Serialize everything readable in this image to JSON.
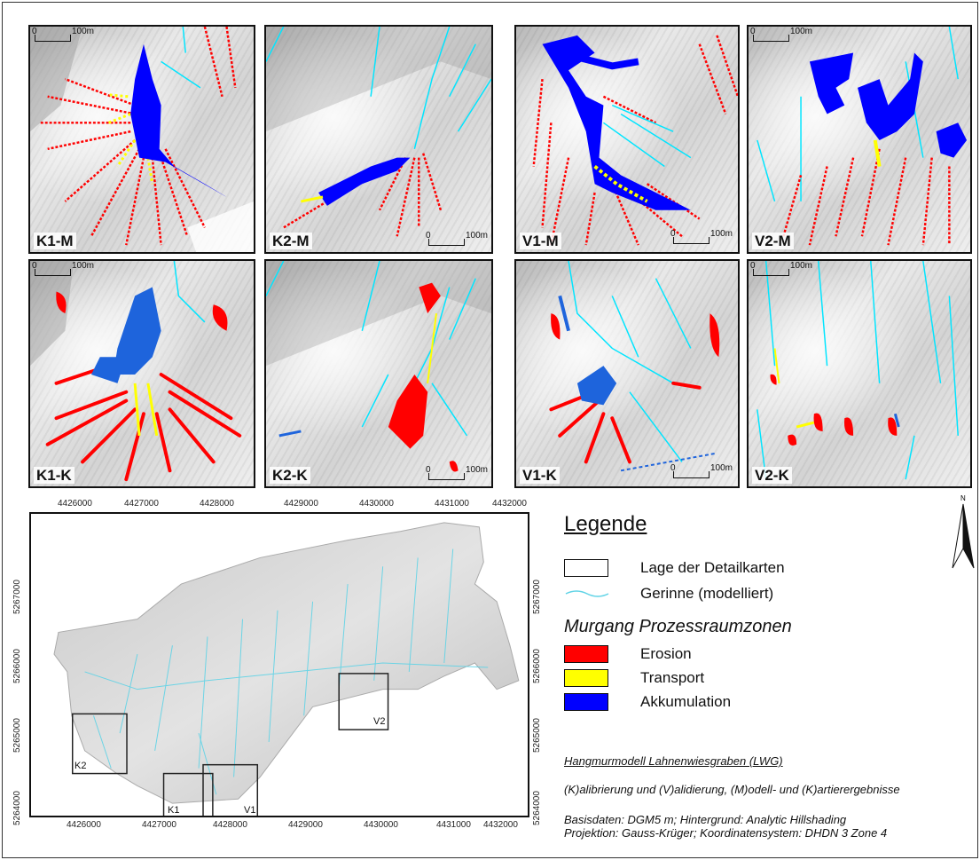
{
  "panels": [
    {
      "id": "k1m",
      "label": "K1-M",
      "scale": {
        "zero": "0",
        "dist": "100m"
      }
    },
    {
      "id": "k2m",
      "label": "K2-M",
      "scale": {
        "zero": "0",
        "dist": "100m"
      }
    },
    {
      "id": "v1m",
      "label": "V1-M",
      "scale": {
        "zero": "0",
        "dist": "100m"
      }
    },
    {
      "id": "v2m",
      "label": "V2-M",
      "scale": {
        "zero": "0",
        "dist": "100m"
      }
    },
    {
      "id": "k1k",
      "label": "K1-K",
      "scale": {
        "zero": "0",
        "dist": "100m"
      }
    },
    {
      "id": "k2k",
      "label": "K2-K",
      "scale": {
        "zero": "0",
        "dist": "100m"
      }
    },
    {
      "id": "v1k",
      "label": "V1-K",
      "scale": {
        "zero": "0",
        "dist": "100m"
      }
    },
    {
      "id": "v2k",
      "label": "V2-K",
      "scale": {
        "zero": "0",
        "dist": "100m"
      }
    }
  ],
  "overview": {
    "x_ticks": [
      "4426000",
      "4427000",
      "4428000",
      "4429000",
      "4430000",
      "4431000",
      "4432000"
    ],
    "y_ticks": [
      "5267000",
      "5266000",
      "5265000",
      "5264000"
    ],
    "boxes": [
      "K2",
      "V2",
      "K1",
      "V1"
    ]
  },
  "legend": {
    "title": "Legende",
    "detail_maps": "Lage der Detailkarten",
    "channels": "Gerinne (modelliert)",
    "zones_title": "Murgang Prozessraumzonen",
    "erosion": "Erosion",
    "transport": "Transport",
    "accumulation": "Akkumulation",
    "north": "N"
  },
  "colors": {
    "erosion": "#ff0000",
    "transport": "#ffff00",
    "accumulation": "#0000ff",
    "accumulation_mapped": "#1e64dc",
    "channel": "#00e5ff"
  },
  "info": {
    "title": "Hangmurmodell Lahnenwiesgraben (LWG)",
    "line1": "(K)alibrierung und (V)alidierung, (M)odell- und (K)artierergebnisse",
    "line2": "Basisdaten: DGM5 m; Hintergrund: Analytic Hillshading",
    "line3": "Projektion: Gauss-Krüger; Koordinatensystem: DHDN 3 Zone 4"
  }
}
